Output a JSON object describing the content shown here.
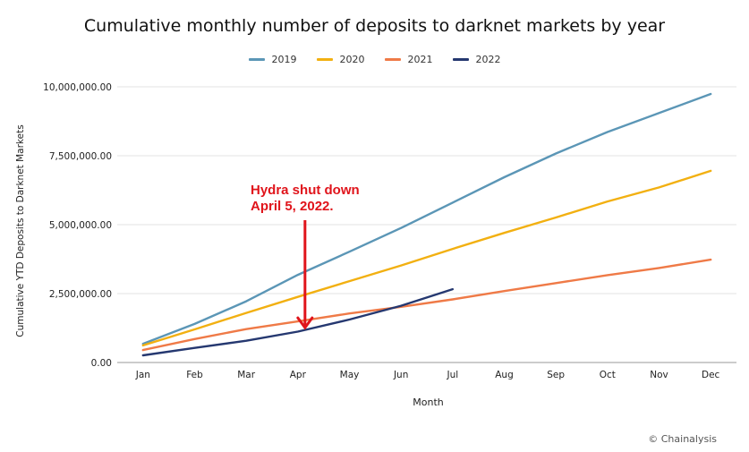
{
  "chart_data": {
    "type": "line",
    "title": "Cumulative monthly number of deposits to darknet markets by year",
    "xlabel": "Month",
    "ylabel": "Cumulative YTD Deposits to Darknet Markets",
    "ylim": [
      0,
      10000000
    ],
    "yticks": [
      "0.00",
      "2,500,000.00",
      "5,000,000.00",
      "7,500,000.00",
      "10,000,000.00"
    ],
    "ytick_values": [
      0,
      2500000,
      5000000,
      7500000,
      10000000
    ],
    "grid": true,
    "legend_position": "top-center",
    "categories": [
      "Jan",
      "Feb",
      "Mar",
      "Apr",
      "May",
      "Jun",
      "Jul",
      "Aug",
      "Sep",
      "Oct",
      "Nov",
      "Dec"
    ],
    "series": [
      {
        "name": "2019",
        "color": "#5b96b6",
        "values": [
          680000,
          1400000,
          2220000,
          3180000,
          4020000,
          4880000,
          5800000,
          6720000,
          7580000,
          8360000,
          9050000,
          9740000
        ]
      },
      {
        "name": "2020",
        "color": "#f2b011",
        "values": [
          620000,
          1200000,
          1800000,
          2380000,
          2950000,
          3520000,
          4120000,
          4700000,
          5260000,
          5840000,
          6350000,
          6950000
        ]
      },
      {
        "name": "2021",
        "color": "#ef7a47",
        "values": [
          450000,
          850000,
          1210000,
          1490000,
          1780000,
          2020000,
          2290000,
          2590000,
          2880000,
          3170000,
          3430000,
          3730000
        ]
      },
      {
        "name": "2022",
        "color": "#253870",
        "values": [
          260000,
          530000,
          790000,
          1120000,
          1560000,
          2060000,
          2660000,
          null,
          null,
          null,
          null,
          null
        ]
      }
    ],
    "annotations": [
      {
        "text_line1": "Hydra shut down",
        "text_line2": "April 5, 2022.",
        "target_month": "Apr",
        "color": "#e0141b"
      }
    ],
    "credit": "© Chainalysis"
  }
}
